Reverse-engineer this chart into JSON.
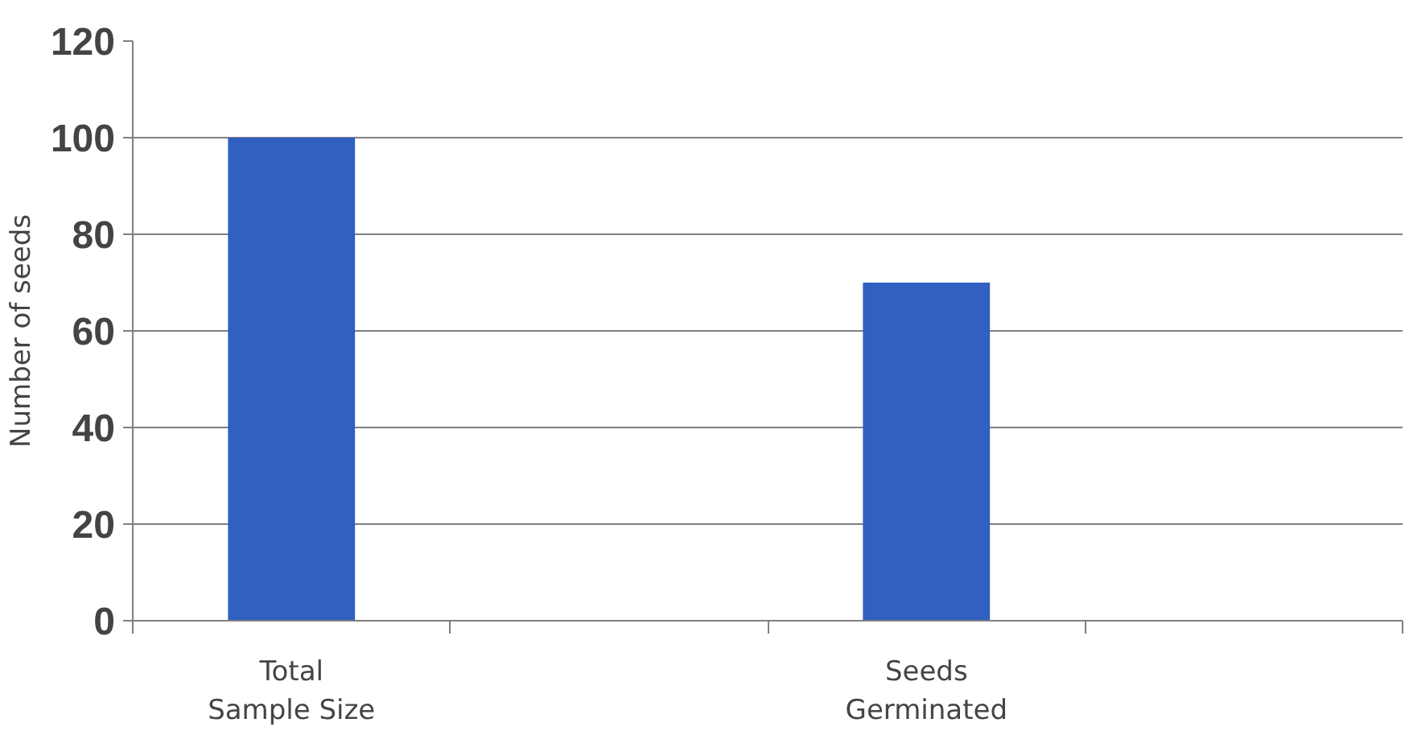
{
  "chart_data": {
    "type": "bar",
    "ylabel": "Number of seeds",
    "categories": [
      "Total Sample Size",
      null,
      "Seeds Germinated",
      null
    ],
    "values": [
      100,
      null,
      70,
      null
    ],
    "color": "#3060c0",
    "ylim": [
      0,
      120
    ],
    "yticks": [
      0,
      20,
      40,
      60,
      80,
      100,
      120
    ],
    "grid": "y"
  }
}
